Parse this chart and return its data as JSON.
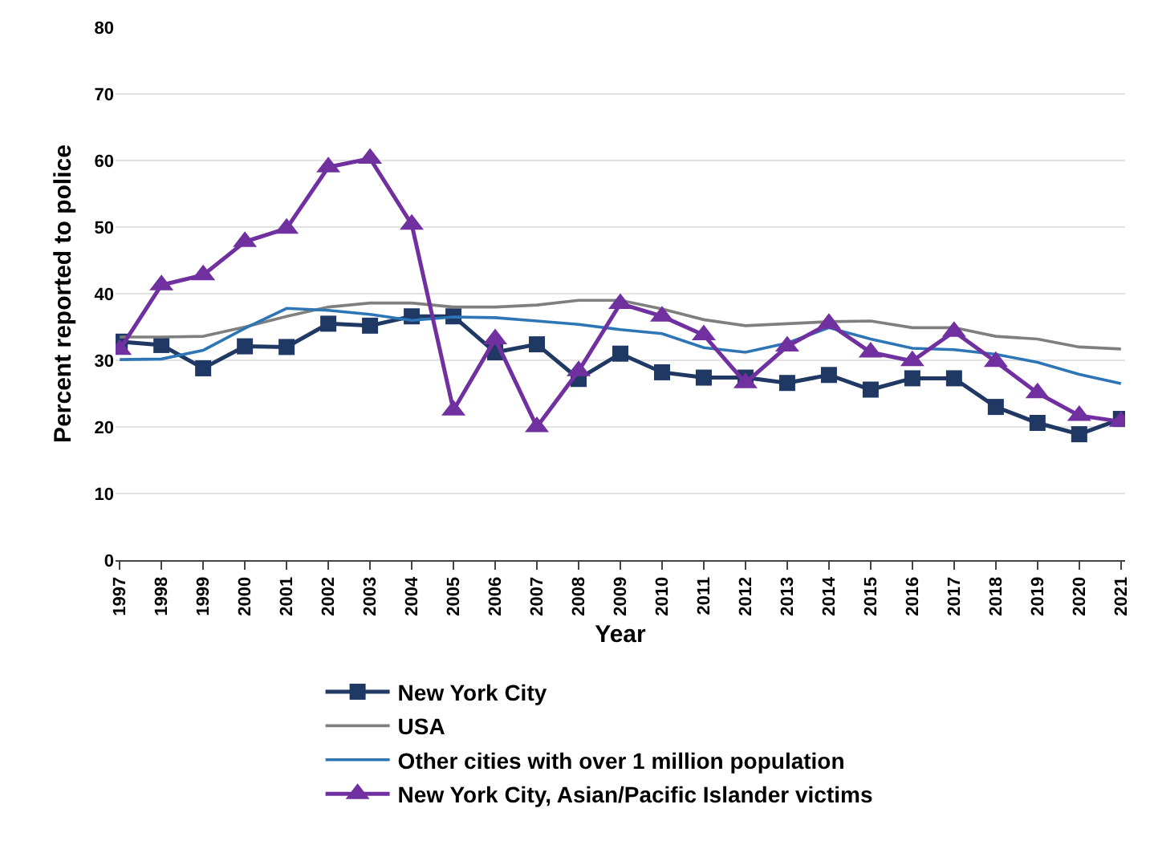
{
  "chart_data": {
    "type": "line",
    "xlabel": "Year",
    "ylabel": "Percent reported to police",
    "categories": [
      "1997",
      "1998",
      "1999",
      "2000",
      "2001",
      "2002",
      "2003",
      "2004",
      "2005",
      "2006",
      "2007",
      "2008",
      "2009",
      "2010",
      "2011",
      "2012",
      "2013",
      "2014",
      "2015",
      "2016",
      "2017",
      "2018",
      "2019",
      "2020",
      "2021"
    ],
    "series": [
      {
        "name": "New York City",
        "color": "#1f3864",
        "marker": "square",
        "values": [
          32.8,
          32.3,
          28.8,
          32.1,
          32.0,
          35.5,
          35.2,
          36.6,
          36.6,
          31.2,
          32.4,
          27.2,
          31.0,
          28.2,
          27.4,
          27.4,
          26.6,
          27.8,
          25.6,
          27.3,
          27.3,
          23.0,
          20.6,
          18.9,
          21.2
        ]
      },
      {
        "name": "USA",
        "color": "#7f7f7f",
        "marker": "none",
        "values": [
          33.5,
          33.5,
          33.6,
          35.0,
          36.6,
          38.0,
          38.6,
          38.6,
          38.0,
          38.0,
          38.3,
          39.0,
          39.0,
          37.7,
          36.1,
          35.2,
          35.5,
          35.8,
          35.9,
          34.9,
          34.9,
          33.6,
          33.2,
          32.0,
          31.7
        ]
      },
      {
        "name": "Other cities with over 1 million population",
        "color": "#2e75b6",
        "marker": "none",
        "values": [
          30.1,
          30.2,
          31.5,
          34.8,
          37.8,
          37.5,
          36.9,
          36.0,
          36.5,
          36.4,
          35.9,
          35.4,
          34.6,
          34.0,
          31.9,
          31.2,
          32.6,
          34.9,
          33.2,
          31.8,
          31.6,
          30.9,
          29.7,
          27.9,
          26.5
        ]
      },
      {
        "name": "New York City, Asian/Pacific Islander victims",
        "color": "#7030a0",
        "marker": "triangle",
        "values": [
          31.6,
          41.3,
          42.8,
          47.8,
          49.8,
          59.0,
          60.3,
          50.4,
          22.5,
          33.2,
          20.0,
          28.4,
          38.5,
          36.6,
          33.8,
          26.6,
          32.1,
          35.5,
          31.2,
          29.9,
          34.3,
          29.8,
          25.1,
          21.7,
          20.8
        ]
      }
    ],
    "ylim": [
      0,
      80
    ],
    "yticks": [
      0,
      10,
      20,
      30,
      40,
      50,
      60,
      70,
      80
    ],
    "grid": "y",
    "legend": "bottom",
    "line_style": "solid"
  }
}
